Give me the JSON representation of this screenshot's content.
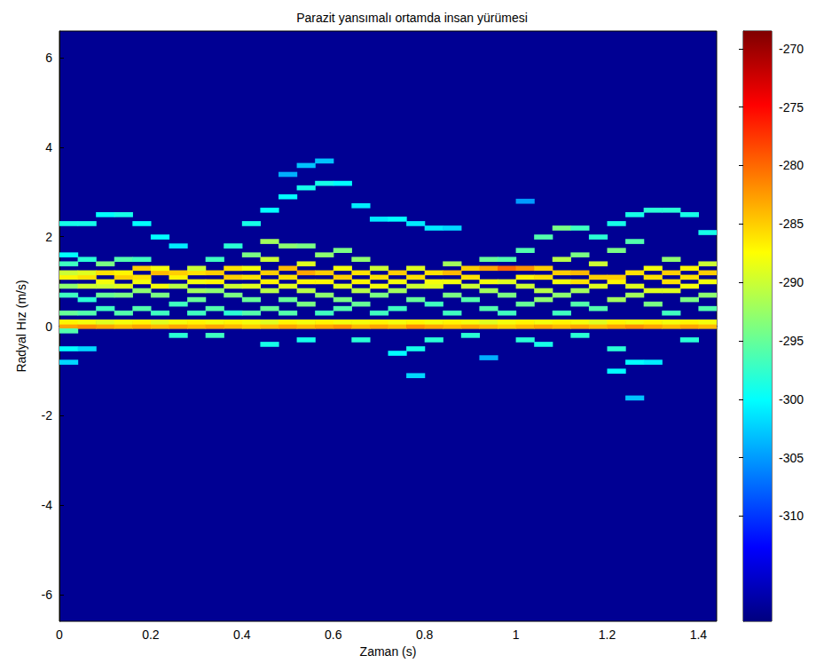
{
  "chart_data": {
    "type": "heatmap",
    "title": "Parazit yansımalı ortamda insan yürümesi",
    "x_label": "Zaman (s)",
    "y_label": "Radyal Hız (m/s)",
    "xlim": [
      0,
      1.44
    ],
    "xticks": [
      0,
      0.2,
      0.4,
      0.6,
      0.8,
      1,
      1.2,
      1.4
    ],
    "ylim": [
      -6.6,
      6.6
    ],
    "yticks": [
      -6,
      -4,
      -2,
      0,
      2,
      4,
      6
    ],
    "grid": false,
    "clim": [
      -319,
      -268.5
    ],
    "cticks": [
      -310,
      -305,
      -300,
      -295,
      -290,
      -285,
      -280,
      -275,
      -270
    ],
    "background": -318,
    "cells": [
      [
        0.02,
        0,
        -283
      ],
      [
        0.02,
        0.1,
        -287
      ],
      [
        0.02,
        -0.1,
        -296
      ],
      [
        0.02,
        0.3,
        -295
      ],
      [
        0.02,
        0.7,
        -297
      ],
      [
        0.02,
        0.9,
        -293
      ],
      [
        0.02,
        1.1,
        -287
      ],
      [
        0.02,
        1.2,
        -290
      ],
      [
        0.02,
        1.4,
        -297
      ],
      [
        0.02,
        1.6,
        -300
      ],
      [
        0.02,
        2.3,
        -299
      ],
      [
        0.02,
        -0.5,
        -300
      ],
      [
        0.02,
        -0.8,
        -302
      ],
      [
        0.06,
        0,
        -282
      ],
      [
        0.06,
        0.1,
        -288
      ],
      [
        0.06,
        0.3,
        -296
      ],
      [
        0.06,
        0.6,
        -298
      ],
      [
        0.06,
        0.9,
        -290
      ],
      [
        0.06,
        1.1,
        -286
      ],
      [
        0.06,
        1.2,
        -289
      ],
      [
        0.06,
        1.5,
        -298
      ],
      [
        0.06,
        2.3,
        -299
      ],
      [
        0.06,
        -0.5,
        -302
      ],
      [
        0.1,
        0,
        -283
      ],
      [
        0.1,
        0.1,
        -289
      ],
      [
        0.1,
        0.4,
        -297
      ],
      [
        0.1,
        0.7,
        -295
      ],
      [
        0.1,
        0.9,
        -290
      ],
      [
        0.1,
        1.0,
        -288
      ],
      [
        0.1,
        1.2,
        -286
      ],
      [
        0.1,
        1.4,
        -294
      ],
      [
        0.1,
        2.5,
        -300
      ],
      [
        0.14,
        0,
        -284
      ],
      [
        0.14,
        0.1,
        -288
      ],
      [
        0.14,
        0.3,
        -296
      ],
      [
        0.14,
        0.7,
        -294
      ],
      [
        0.14,
        0.9,
        -289
      ],
      [
        0.14,
        1.1,
        -285
      ],
      [
        0.14,
        1.2,
        -287
      ],
      [
        0.14,
        1.5,
        -296
      ],
      [
        0.14,
        2.5,
        -299
      ],
      [
        0.18,
        0,
        -283
      ],
      [
        0.18,
        0.1,
        -287
      ],
      [
        0.18,
        0.4,
        -296
      ],
      [
        0.18,
        0.8,
        -293
      ],
      [
        0.18,
        1.0,
        -288
      ],
      [
        0.18,
        1.1,
        -286
      ],
      [
        0.18,
        1.3,
        -285
      ],
      [
        0.18,
        1.5,
        -297
      ],
      [
        0.18,
        2.3,
        -300
      ],
      [
        0.22,
        0,
        -284
      ],
      [
        0.22,
        0.1,
        -289
      ],
      [
        0.22,
        0.3,
        -297
      ],
      [
        0.22,
        0.7,
        -294
      ],
      [
        0.22,
        0.9,
        -288
      ],
      [
        0.22,
        1.2,
        -284
      ],
      [
        0.22,
        1.3,
        -288
      ],
      [
        0.22,
        2.0,
        -300
      ],
      [
        0.26,
        0,
        -283
      ],
      [
        0.26,
        0.1,
        -288
      ],
      [
        0.26,
        -0.2,
        -298
      ],
      [
        0.26,
        0.5,
        -297
      ],
      [
        0.26,
        0.9,
        -291
      ],
      [
        0.26,
        1.1,
        -287
      ],
      [
        0.26,
        1.2,
        -285
      ],
      [
        0.26,
        1.8,
        -301
      ],
      [
        0.3,
        0,
        -284
      ],
      [
        0.3,
        0.1,
        -287
      ],
      [
        0.3,
        0.3,
        -297
      ],
      [
        0.3,
        0.6,
        -295
      ],
      [
        0.3,
        0.8,
        -292
      ],
      [
        0.3,
        1.0,
        -288
      ],
      [
        0.3,
        1.2,
        -286
      ],
      [
        0.3,
        1.3,
        -290
      ],
      [
        0.34,
        0,
        -283
      ],
      [
        0.34,
        0.1,
        -288
      ],
      [
        0.34,
        -0.2,
        -297
      ],
      [
        0.34,
        0.4,
        -296
      ],
      [
        0.34,
        0.8,
        -293
      ],
      [
        0.34,
        1.0,
        -287
      ],
      [
        0.34,
        1.2,
        -285
      ],
      [
        0.34,
        1.5,
        -297
      ],
      [
        0.38,
        0,
        -284
      ],
      [
        0.38,
        0.1,
        -287
      ],
      [
        0.38,
        0.3,
        -298
      ],
      [
        0.38,
        0.7,
        -294
      ],
      [
        0.38,
        0.9,
        -290
      ],
      [
        0.38,
        1.1,
        -285
      ],
      [
        0.38,
        1.3,
        -286
      ],
      [
        0.38,
        1.8,
        -298
      ],
      [
        0.42,
        0,
        -285
      ],
      [
        0.42,
        0.1,
        -288
      ],
      [
        0.42,
        0.3,
        -296
      ],
      [
        0.42,
        0.6,
        -295
      ],
      [
        0.42,
        0.9,
        -289
      ],
      [
        0.42,
        1.1,
        -286
      ],
      [
        0.42,
        1.3,
        -288
      ],
      [
        0.42,
        1.6,
        -294
      ],
      [
        0.42,
        2.3,
        -299
      ],
      [
        0.46,
        0,
        -284
      ],
      [
        0.46,
        0.1,
        -289
      ],
      [
        0.46,
        -0.4,
        -299
      ],
      [
        0.46,
        0.4,
        -295
      ],
      [
        0.46,
        0.8,
        -291
      ],
      [
        0.46,
        1.0,
        -287
      ],
      [
        0.46,
        1.2,
        -285
      ],
      [
        0.46,
        1.5,
        -290
      ],
      [
        0.46,
        1.9,
        -292
      ],
      [
        0.46,
        2.6,
        -300
      ],
      [
        0.5,
        0,
        -283
      ],
      [
        0.5,
        0.1,
        -287
      ],
      [
        0.5,
        0.3,
        -296
      ],
      [
        0.5,
        0.6,
        -295
      ],
      [
        0.5,
        0.9,
        -289
      ],
      [
        0.5,
        1.1,
        -286
      ],
      [
        0.5,
        1.3,
        -284
      ],
      [
        0.5,
        1.8,
        -293
      ],
      [
        0.5,
        2.9,
        -300
      ],
      [
        0.5,
        3.4,
        -304
      ],
      [
        0.54,
        0,
        -284
      ],
      [
        0.54,
        0.1,
        -288
      ],
      [
        0.54,
        -0.3,
        -299
      ],
      [
        0.54,
        0.5,
        -294
      ],
      [
        0.54,
        0.8,
        -291
      ],
      [
        0.54,
        1.0,
        -287
      ],
      [
        0.54,
        1.2,
        -283
      ],
      [
        0.54,
        1.4,
        -289
      ],
      [
        0.54,
        1.8,
        -294
      ],
      [
        0.54,
        3.1,
        -299
      ],
      [
        0.54,
        3.6,
        -303
      ],
      [
        0.58,
        0,
        -283
      ],
      [
        0.58,
        0.1,
        -287
      ],
      [
        0.58,
        0.3,
        -297
      ],
      [
        0.58,
        0.7,
        -293
      ],
      [
        0.58,
        1.0,
        -287
      ],
      [
        0.58,
        1.2,
        -285
      ],
      [
        0.58,
        1.6,
        -293
      ],
      [
        0.58,
        3.2,
        -299
      ],
      [
        0.58,
        3.7,
        -303
      ],
      [
        0.62,
        0,
        -282
      ],
      [
        0.62,
        0.1,
        -288
      ],
      [
        0.62,
        0.4,
        -296
      ],
      [
        0.62,
        0.6,
        -294
      ],
      [
        0.62,
        0.9,
        -289
      ],
      [
        0.62,
        1.1,
        -285
      ],
      [
        0.62,
        1.3,
        -288
      ],
      [
        0.62,
        1.7,
        -294
      ],
      [
        0.62,
        3.2,
        -300
      ],
      [
        0.66,
        0,
        -284
      ],
      [
        0.66,
        0.1,
        -288
      ],
      [
        0.66,
        -0.3,
        -298
      ],
      [
        0.66,
        0.5,
        -295
      ],
      [
        0.66,
        0.8,
        -291
      ],
      [
        0.66,
        1.0,
        -287
      ],
      [
        0.66,
        1.2,
        -286
      ],
      [
        0.66,
        1.5,
        -293
      ],
      [
        0.66,
        2.7,
        -301
      ],
      [
        0.7,
        0,
        -283
      ],
      [
        0.7,
        0.1,
        -287
      ],
      [
        0.7,
        0.3,
        -297
      ],
      [
        0.7,
        0.7,
        -294
      ],
      [
        0.7,
        0.9,
        -288
      ],
      [
        0.7,
        1.1,
        -286
      ],
      [
        0.7,
        1.3,
        -290
      ],
      [
        0.7,
        2.4,
        -301
      ],
      [
        0.74,
        0,
        -284
      ],
      [
        0.74,
        0.1,
        -288
      ],
      [
        0.74,
        -0.6,
        -300
      ],
      [
        0.74,
        0.4,
        -297
      ],
      [
        0.74,
        0.8,
        -292
      ],
      [
        0.74,
        1.0,
        -288
      ],
      [
        0.74,
        1.2,
        -285
      ],
      [
        0.74,
        2.4,
        -300
      ],
      [
        0.78,
        0,
        -282
      ],
      [
        0.78,
        0.1,
        -287
      ],
      [
        0.78,
        -0.5,
        -299
      ],
      [
        0.78,
        -1.1,
        -302
      ],
      [
        0.78,
        0.6,
        -295
      ],
      [
        0.78,
        0.9,
        -290
      ],
      [
        0.78,
        1.1,
        -286
      ],
      [
        0.78,
        1.3,
        -289
      ],
      [
        0.78,
        2.3,
        -301
      ],
      [
        0.82,
        0,
        -283
      ],
      [
        0.82,
        0.1,
        -288
      ],
      [
        0.82,
        -0.3,
        -298
      ],
      [
        0.82,
        0.5,
        -297
      ],
      [
        0.82,
        0.9,
        -289
      ],
      [
        0.82,
        1.0,
        -288
      ],
      [
        0.82,
        1.2,
        -286
      ],
      [
        0.82,
        2.2,
        -301
      ],
      [
        0.86,
        0,
        -284
      ],
      [
        0.86,
        0.1,
        -287
      ],
      [
        0.86,
        0.3,
        -297
      ],
      [
        0.86,
        0.7,
        -294
      ],
      [
        0.86,
        1.0,
        -288
      ],
      [
        0.86,
        1.2,
        -284
      ],
      [
        0.86,
        1.4,
        -292
      ],
      [
        0.86,
        2.2,
        -302
      ],
      [
        0.9,
        0,
        -283
      ],
      [
        0.9,
        0.1,
        -288
      ],
      [
        0.9,
        -0.2,
        -298
      ],
      [
        0.9,
        0.6,
        -296
      ],
      [
        0.9,
        0.9,
        -290
      ],
      [
        0.9,
        1.1,
        -286
      ],
      [
        0.9,
        1.3,
        -285
      ],
      [
        0.94,
        0,
        -284
      ],
      [
        0.94,
        0.1,
        -289
      ],
      [
        0.94,
        -0.7,
        -304
      ],
      [
        0.94,
        0.4,
        -296
      ],
      [
        0.94,
        0.8,
        -292
      ],
      [
        0.94,
        1.0,
        -288
      ],
      [
        0.94,
        1.3,
        -283
      ],
      [
        0.94,
        1.5,
        -295
      ],
      [
        0.98,
        0,
        -285
      ],
      [
        0.98,
        0.1,
        -288
      ],
      [
        0.98,
        0.3,
        -297
      ],
      [
        0.98,
        0.7,
        -294
      ],
      [
        0.98,
        1.0,
        -289
      ],
      [
        0.98,
        1.3,
        -280
      ],
      [
        0.98,
        1.5,
        -296
      ],
      [
        1.02,
        0,
        -284
      ],
      [
        1.02,
        0.1,
        -287
      ],
      [
        1.02,
        -0.3,
        -298
      ],
      [
        1.02,
        0.5,
        -295
      ],
      [
        1.02,
        0.9,
        -290
      ],
      [
        1.02,
        1.1,
        -287
      ],
      [
        1.02,
        1.3,
        -282
      ],
      [
        1.02,
        1.7,
        -296
      ],
      [
        1.02,
        2.8,
        -305
      ],
      [
        1.06,
        0,
        -283
      ],
      [
        1.06,
        0.1,
        -288
      ],
      [
        1.06,
        -0.4,
        -299
      ],
      [
        1.06,
        0.6,
        -293
      ],
      [
        1.06,
        0.8,
        -291
      ],
      [
        1.06,
        1.1,
        -286
      ],
      [
        1.06,
        1.3,
        -285
      ],
      [
        1.06,
        2.0,
        -296
      ],
      [
        1.1,
        0,
        -284
      ],
      [
        1.1,
        0.1,
        -287
      ],
      [
        1.1,
        0.3,
        -297
      ],
      [
        1.1,
        0.7,
        -293
      ],
      [
        1.1,
        1.0,
        -288
      ],
      [
        1.1,
        1.2,
        -285
      ],
      [
        1.1,
        1.5,
        -291
      ],
      [
        1.1,
        2.2,
        -294
      ],
      [
        1.14,
        0,
        -283
      ],
      [
        1.14,
        0.1,
        -288
      ],
      [
        1.14,
        -0.2,
        -298
      ],
      [
        1.14,
        0.5,
        -296
      ],
      [
        1.14,
        0.8,
        -292
      ],
      [
        1.14,
        1.0,
        -286
      ],
      [
        1.14,
        1.2,
        -284
      ],
      [
        1.14,
        1.6,
        -294
      ],
      [
        1.14,
        2.2,
        -297
      ],
      [
        1.18,
        0,
        -284
      ],
      [
        1.18,
        0.1,
        -289
      ],
      [
        1.18,
        0.4,
        -296
      ],
      [
        1.18,
        0.9,
        -289
      ],
      [
        1.18,
        1.1,
        -285
      ],
      [
        1.18,
        1.4,
        -290
      ],
      [
        1.18,
        2.0,
        -298
      ],
      [
        1.22,
        0,
        -283
      ],
      [
        1.22,
        0.1,
        -287
      ],
      [
        1.22,
        -1.0,
        -300
      ],
      [
        1.22,
        -0.5,
        -298
      ],
      [
        1.22,
        0.6,
        -292
      ],
      [
        1.22,
        1.0,
        -287
      ],
      [
        1.22,
        1.1,
        -285
      ],
      [
        1.22,
        1.7,
        -294
      ],
      [
        1.22,
        2.3,
        -299
      ],
      [
        1.26,
        0,
        -282
      ],
      [
        1.26,
        0.1,
        -288
      ],
      [
        1.26,
        -1.6,
        -303
      ],
      [
        1.26,
        -0.8,
        -300
      ],
      [
        1.26,
        0.7,
        -292
      ],
      [
        1.26,
        0.9,
        -289
      ],
      [
        1.26,
        1.2,
        -286
      ],
      [
        1.26,
        1.9,
        -296
      ],
      [
        1.26,
        2.5,
        -299
      ],
      [
        1.3,
        0,
        -283
      ],
      [
        1.3,
        0.1,
        -287
      ],
      [
        1.3,
        -0.8,
        -301
      ],
      [
        1.3,
        0.5,
        -294
      ],
      [
        1.3,
        0.8,
        -289
      ],
      [
        1.3,
        1.1,
        -286
      ],
      [
        1.3,
        1.3,
        -288
      ],
      [
        1.3,
        2.6,
        -298
      ],
      [
        1.34,
        0,
        -284
      ],
      [
        1.34,
        0.1,
        -288
      ],
      [
        1.34,
        0.3,
        -297
      ],
      [
        1.34,
        0.8,
        -289
      ],
      [
        1.34,
        1.0,
        -286
      ],
      [
        1.34,
        1.2,
        -285
      ],
      [
        1.34,
        1.5,
        -293
      ],
      [
        1.34,
        2.6,
        -298
      ],
      [
        1.38,
        0,
        -283
      ],
      [
        1.38,
        0.1,
        -287
      ],
      [
        1.38,
        -0.3,
        -298
      ],
      [
        1.38,
        0.6,
        -294
      ],
      [
        1.38,
        0.9,
        -288
      ],
      [
        1.38,
        1.1,
        -286
      ],
      [
        1.38,
        1.3,
        -287
      ],
      [
        1.38,
        2.5,
        -299
      ],
      [
        1.42,
        0,
        -284
      ],
      [
        1.42,
        0.1,
        -288
      ],
      [
        1.42,
        0.4,
        -296
      ],
      [
        1.42,
        0.7,
        -293
      ],
      [
        1.42,
        1.0,
        -288
      ],
      [
        1.42,
        1.2,
        -285
      ],
      [
        1.42,
        1.4,
        -290
      ],
      [
        1.42,
        2.1,
        -299
      ]
    ]
  }
}
